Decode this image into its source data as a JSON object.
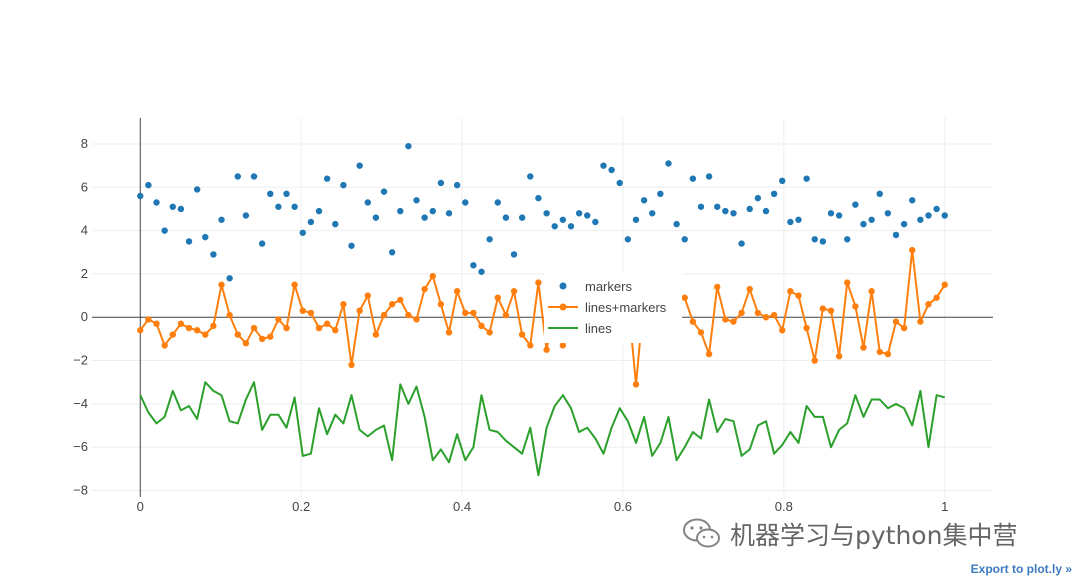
{
  "chart_data": {
    "type": "scatter",
    "xlim": [
      -0.06,
      1.06
    ],
    "ylim": [
      -8.3,
      9.2
    ],
    "x_ticks": [
      0,
      0.2,
      0.4,
      0.6,
      0.8,
      1
    ],
    "x_tick_labels": [
      "0",
      "0.2",
      "0.4",
      "0.6",
      "0.8",
      "1"
    ],
    "y_ticks": [
      -8,
      -6,
      -4,
      -2,
      0,
      2,
      4,
      6,
      8
    ],
    "y_tick_labels": [
      "−8",
      "−6",
      "−4",
      "−2",
      "0",
      "2",
      "4",
      "6",
      "8"
    ],
    "grid": true,
    "legend_position": "center",
    "x": [
      0,
      0.0101,
      0.0202,
      0.0303,
      0.0404,
      0.0505,
      0.0606,
      0.0707,
      0.0808,
      0.0909,
      0.101,
      0.1111,
      0.1212,
      0.1313,
      0.1414,
      0.1515,
      0.1616,
      0.1717,
      0.1818,
      0.1919,
      0.202,
      0.2121,
      0.2222,
      0.2323,
      0.2424,
      0.2525,
      0.2626,
      0.2727,
      0.2828,
      0.2929,
      0.303,
      0.3131,
      0.3232,
      0.3333,
      0.3434,
      0.3535,
      0.3636,
      0.3737,
      0.3838,
      0.3939,
      0.404,
      0.4141,
      0.4242,
      0.4343,
      0.4444,
      0.4545,
      0.4646,
      0.4747,
      0.4848,
      0.4949,
      0.5051,
      0.5152,
      0.5253,
      0.5354,
      0.5455,
      0.5556,
      0.5657,
      0.5758,
      0.5859,
      0.596,
      0.6061,
      0.6162,
      0.6263,
      0.6364,
      0.6465,
      0.6566,
      0.6667,
      0.6768,
      0.6869,
      0.697,
      0.7071,
      0.7172,
      0.7273,
      0.7374,
      0.7475,
      0.7576,
      0.7677,
      0.7778,
      0.7879,
      0.798,
      0.8081,
      0.8182,
      0.8283,
      0.8384,
      0.8485,
      0.8586,
      0.8687,
      0.8788,
      0.8889,
      0.899,
      0.9091,
      0.9192,
      0.9293,
      0.9394,
      0.9495,
      0.9596,
      0.9697,
      0.9798,
      0.9899,
      1
    ],
    "series": [
      {
        "name": "markers",
        "mode": "markers",
        "color": "#1f77b4",
        "values": [
          5.6,
          6.1,
          5.3,
          4.0,
          5.1,
          5.0,
          3.5,
          5.9,
          3.7,
          2.9,
          4.5,
          1.8,
          6.5,
          4.7,
          6.5,
          3.4,
          5.7,
          5.1,
          5.7,
          5.1,
          3.9,
          4.4,
          4.9,
          6.4,
          4.3,
          6.1,
          3.3,
          7.0,
          5.3,
          4.6,
          5.8,
          3.0,
          4.9,
          7.9,
          5.4,
          4.6,
          4.9,
          6.2,
          4.8,
          6.1,
          5.3,
          2.4,
          2.1,
          3.6,
          5.3,
          4.6,
          2.9,
          4.6,
          6.5,
          5.5,
          4.8,
          4.2,
          4.5,
          4.2,
          4.8,
          4.7,
          4.4,
          7.0,
          6.8,
          6.2,
          3.6,
          4.5,
          5.4,
          4.8,
          5.7,
          7.1,
          4.3,
          3.6,
          6.4,
          5.1,
          6.5,
          5.1,
          4.9,
          4.8,
          3.4,
          5.0,
          5.5,
          4.9,
          5.7,
          6.3,
          4.4,
          4.5,
          6.4,
          3.6,
          3.5,
          4.8,
          4.7,
          3.6,
          5.2,
          4.3,
          4.5,
          5.7,
          4.8,
          3.8,
          4.3,
          5.4,
          4.5,
          4.7,
          5.0,
          4.7
        ]
      },
      {
        "name": "lines+markers",
        "mode": "lines+markers",
        "color": "#ff7f0e",
        "values": [
          -0.6,
          -0.1,
          -0.3,
          -1.3,
          -0.8,
          -0.3,
          -0.5,
          -0.6,
          -0.8,
          -0.4,
          1.5,
          0.1,
          -0.8,
          -1.2,
          -0.5,
          -1.0,
          -0.9,
          -0.1,
          -0.5,
          1.5,
          0.3,
          0.2,
          -0.5,
          -0.3,
          -0.6,
          0.6,
          -2.2,
          0.3,
          1.0,
          -0.8,
          0.1,
          0.6,
          0.8,
          0.1,
          -0.1,
          1.3,
          1.9,
          0.6,
          -0.7,
          1.2,
          0.2,
          0.2,
          -0.4,
          -0.7,
          0.9,
          0.1,
          1.2,
          -0.8,
          -1.3,
          1.6,
          -1.5,
          0.5,
          -1.3,
          0.8,
          1.1,
          -0.3,
          0.4,
          0.7,
          0.2,
          -0.5,
          0.9,
          -3.1,
          1.0,
          0.6,
          0.2,
          -0.4,
          1.0,
          0.9,
          -0.2,
          -0.7,
          -1.7,
          1.4,
          -0.1,
          -0.2,
          0.2,
          1.3,
          0.2,
          0.0,
          0.1,
          -0.6,
          1.2,
          1.0,
          -0.5,
          -2.0,
          0.4,
          0.3,
          -1.8,
          1.6,
          0.5,
          -1.4,
          1.2,
          -1.6,
          -1.7,
          -0.2,
          -0.5,
          3.1,
          -0.2,
          0.6,
          0.9,
          1.5
        ]
      },
      {
        "name": "lines",
        "mode": "lines",
        "color": "#2ca02c",
        "values": [
          -3.6,
          -4.4,
          -4.9,
          -4.6,
          -3.4,
          -4.3,
          -4.1,
          -4.7,
          -3.0,
          -3.4,
          -3.6,
          -4.8,
          -4.9,
          -3.8,
          -3.0,
          -5.2,
          -4.5,
          -4.5,
          -5.1,
          -3.7,
          -6.4,
          -6.3,
          -4.2,
          -5.4,
          -4.5,
          -4.9,
          -3.6,
          -5.2,
          -5.5,
          -5.2,
          -5.0,
          -6.6,
          -3.1,
          -4.0,
          -3.2,
          -4.6,
          -6.6,
          -6.1,
          -6.7,
          -5.4,
          -6.6,
          -6.0,
          -3.6,
          -5.2,
          -5.3,
          -5.7,
          -6.0,
          -6.3,
          -5.1,
          -7.3,
          -5.1,
          -4.1,
          -3.6,
          -4.2,
          -5.3,
          -5.1,
          -5.6,
          -6.3,
          -5.1,
          -4.2,
          -4.8,
          -5.8,
          -4.6,
          -6.4,
          -5.8,
          -4.6,
          -6.6,
          -6.0,
          -5.3,
          -5.6,
          -3.8,
          -5.3,
          -4.7,
          -4.8,
          -6.4,
          -6.1,
          -5.0,
          -4.8,
          -6.3,
          -5.9,
          -5.3,
          -5.8,
          -4.1,
          -4.6,
          -4.6,
          -6.0,
          -5.2,
          -4.9,
          -3.6,
          -4.6,
          -3.8,
          -3.8,
          -4.2,
          -4.0,
          -4.2,
          -5.0,
          -3.4,
          -6.0,
          -3.6,
          -3.7
        ]
      }
    ]
  },
  "watermark": {
    "text": "机器学习与python集中营"
  },
  "export_link": "Export to plot.ly »"
}
